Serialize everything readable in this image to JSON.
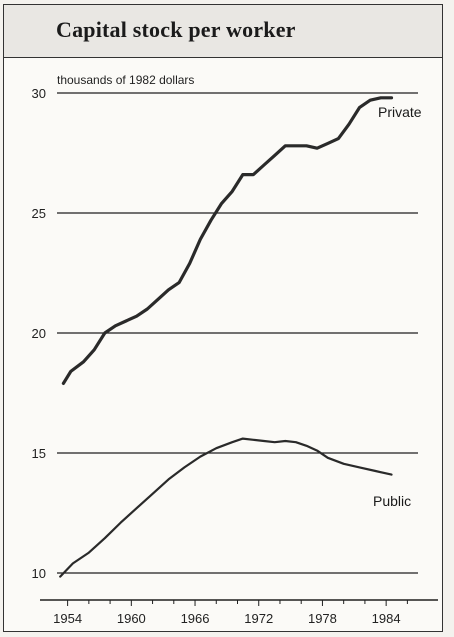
{
  "chart_data": {
    "type": "line",
    "title": "Capital stock per worker",
    "ylabel": "thousands of 1982 dollars",
    "xlabel": "",
    "ylim": [
      10,
      30
    ],
    "xlim": [
      1953,
      1987
    ],
    "yticks": [
      10,
      15,
      20,
      25,
      30
    ],
    "xticks": [
      1954,
      1960,
      1966,
      1972,
      1978,
      1984
    ],
    "grid": "horizontal",
    "series": [
      {
        "name": "Private",
        "color": "#2a2a2a",
        "x": [
          1953.6,
          1954.3,
          1955.5,
          1956.5,
          1957.5,
          1958.5,
          1959.5,
          1960.5,
          1961.5,
          1962.5,
          1963.5,
          1964.5,
          1965.5,
          1966.5,
          1967.5,
          1968.5,
          1969.5,
          1970.5,
          1971.5,
          1972.5,
          1973.5,
          1974.5,
          1975.5,
          1976.5,
          1977.5,
          1978.5,
          1979.5,
          1980.5,
          1981.5,
          1982.5,
          1983.5,
          1984.5
        ],
        "values": [
          17.9,
          18.4,
          18.8,
          19.3,
          20.0,
          20.3,
          20.5,
          20.7,
          21.0,
          21.4,
          21.8,
          22.1,
          22.9,
          23.9,
          24.7,
          25.4,
          25.9,
          26.6,
          26.6,
          27.0,
          27.4,
          27.8,
          27.8,
          27.8,
          27.7,
          27.9,
          28.1,
          28.7,
          29.4,
          29.7,
          29.8,
          29.8
        ]
      },
      {
        "name": "Public",
        "color": "#2a2a2a",
        "x": [
          1953.3,
          1954.5,
          1956.0,
          1957.5,
          1959.0,
          1960.5,
          1962.0,
          1963.5,
          1965.0,
          1966.5,
          1968.0,
          1969.5,
          1970.5,
          1971.5,
          1972.5,
          1973.5,
          1974.5,
          1975.5,
          1976.5,
          1977.5,
          1978.5,
          1980.0,
          1981.5,
          1983.0,
          1984.5
        ],
        "values": [
          9.85,
          10.4,
          10.85,
          11.45,
          12.1,
          12.7,
          13.3,
          13.9,
          14.4,
          14.85,
          15.2,
          15.45,
          15.6,
          15.55,
          15.5,
          15.45,
          15.5,
          15.45,
          15.3,
          15.1,
          14.8,
          14.55,
          14.4,
          14.25,
          14.1
        ]
      }
    ]
  }
}
